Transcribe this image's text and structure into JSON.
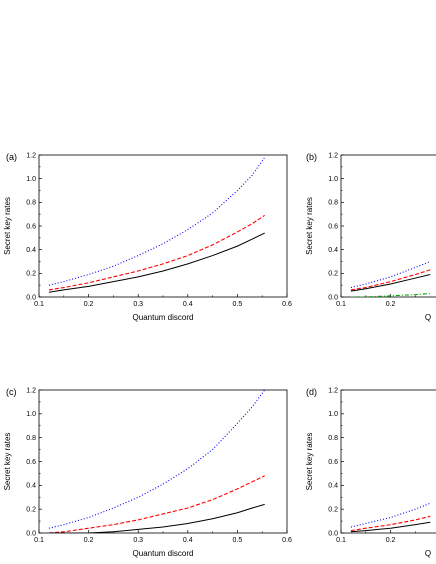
{
  "chart_data": [
    {
      "type": "line",
      "panel_label": "(a)",
      "xlabel": "Quantum discord",
      "ylabel": "Secret key rates",
      "xlim": [
        0.1,
        0.6
      ],
      "ylim": [
        0.0,
        1.2
      ],
      "x_ticks": [
        "0.1",
        "0.2",
        "0.3",
        "0.4",
        "0.5",
        "0.6"
      ],
      "y_ticks": [
        "0.0",
        "0.2",
        "0.4",
        "0.6",
        "0.8",
        "1.0",
        "1.2"
      ],
      "grid": false,
      "series": [
        {
          "style": "dotted",
          "color": "#0000ff",
          "x": [
            0.12,
            0.15,
            0.2,
            0.25,
            0.3,
            0.35,
            0.4,
            0.45,
            0.5,
            0.53,
            0.555
          ],
          "y": [
            0.1,
            0.13,
            0.19,
            0.26,
            0.35,
            0.45,
            0.57,
            0.71,
            0.9,
            1.03,
            1.18
          ]
        },
        {
          "style": "dashed",
          "color": "#ff0000",
          "x": [
            0.12,
            0.15,
            0.2,
            0.25,
            0.3,
            0.35,
            0.4,
            0.45,
            0.5,
            0.53,
            0.555
          ],
          "y": [
            0.06,
            0.08,
            0.12,
            0.17,
            0.22,
            0.28,
            0.35,
            0.44,
            0.55,
            0.62,
            0.69
          ]
        },
        {
          "style": "solid",
          "color": "#000000",
          "x": [
            0.12,
            0.15,
            0.2,
            0.25,
            0.3,
            0.35,
            0.4,
            0.45,
            0.5,
            0.53,
            0.555
          ],
          "y": [
            0.04,
            0.06,
            0.09,
            0.13,
            0.17,
            0.22,
            0.28,
            0.35,
            0.43,
            0.49,
            0.54
          ]
        }
      ]
    },
    {
      "type": "line",
      "panel_label": "(b)",
      "xlabel": "Q",
      "ylabel": "Secret key rates",
      "xlim": [
        0.1,
        0.6
      ],
      "ylim": [
        0.0,
        1.2
      ],
      "x_ticks": [
        "0.1",
        "0.2"
      ],
      "y_ticks": [
        "0.0",
        "0.2",
        "0.4",
        "0.6",
        "0.8",
        "1.0",
        "1.2"
      ],
      "grid": false,
      "series": [
        {
          "style": "dotted",
          "color": "#0000ff",
          "x": [
            0.12,
            0.15,
            0.2,
            0.25,
            0.28
          ],
          "y": [
            0.08,
            0.11,
            0.17,
            0.25,
            0.3
          ]
        },
        {
          "style": "dashed",
          "color": "#ff0000",
          "x": [
            0.12,
            0.15,
            0.2,
            0.25,
            0.28
          ],
          "y": [
            0.06,
            0.08,
            0.13,
            0.19,
            0.23
          ]
        },
        {
          "style": "solid",
          "color": "#000000",
          "x": [
            0.12,
            0.15,
            0.2,
            0.25,
            0.28
          ],
          "y": [
            0.05,
            0.07,
            0.11,
            0.16,
            0.19
          ]
        },
        {
          "style": "dash-dot",
          "color": "#00aa00",
          "x": [
            0.12,
            0.15,
            0.2,
            0.25,
            0.28
          ],
          "y": [
            0.0,
            0.0,
            0.01,
            0.02,
            0.03
          ]
        }
      ]
    },
    {
      "type": "line",
      "panel_label": "(c)",
      "xlabel": "Quantum discord",
      "ylabel": "Secret key rates",
      "xlim": [
        0.1,
        0.6
      ],
      "ylim": [
        0.0,
        1.2
      ],
      "x_ticks": [
        "0.1",
        "0.2",
        "0.3",
        "0.4",
        "0.5",
        "0.6"
      ],
      "y_ticks": [
        "0.0",
        "0.2",
        "0.4",
        "0.6",
        "0.8",
        "1.0",
        "1.2"
      ],
      "grid": false,
      "series": [
        {
          "style": "dotted",
          "color": "#0000ff",
          "x": [
            0.12,
            0.15,
            0.2,
            0.25,
            0.3,
            0.35,
            0.4,
            0.45,
            0.5,
            0.53,
            0.555
          ],
          "y": [
            0.04,
            0.07,
            0.13,
            0.21,
            0.3,
            0.41,
            0.54,
            0.7,
            0.92,
            1.06,
            1.2
          ]
        },
        {
          "style": "dashed",
          "color": "#ff0000",
          "x": [
            0.12,
            0.15,
            0.2,
            0.25,
            0.3,
            0.35,
            0.4,
            0.45,
            0.5,
            0.53,
            0.555
          ],
          "y": [
            0.0,
            0.01,
            0.04,
            0.07,
            0.11,
            0.16,
            0.21,
            0.28,
            0.37,
            0.43,
            0.48
          ]
        },
        {
          "style": "solid",
          "color": "#000000",
          "x": [
            0.12,
            0.15,
            0.2,
            0.25,
            0.3,
            0.35,
            0.4,
            0.45,
            0.5,
            0.53,
            0.555
          ],
          "y": [
            0.0,
            0.0,
            0.0,
            0.01,
            0.03,
            0.05,
            0.08,
            0.12,
            0.17,
            0.21,
            0.24
          ]
        }
      ]
    },
    {
      "type": "line",
      "panel_label": "(d)",
      "xlabel": "Q",
      "ylabel": "Secret key rates",
      "xlim": [
        0.1,
        0.6
      ],
      "ylim": [
        0.0,
        1.2
      ],
      "x_ticks": [
        "0.1",
        "0.2"
      ],
      "y_ticks": [
        "0.0",
        "0.2",
        "0.4",
        "0.6",
        "0.8",
        "1.0",
        "1.2"
      ],
      "grid": false,
      "series": [
        {
          "style": "dotted",
          "color": "#0000ff",
          "x": [
            0.12,
            0.15,
            0.2,
            0.25,
            0.28
          ],
          "y": [
            0.05,
            0.08,
            0.13,
            0.2,
            0.25
          ]
        },
        {
          "style": "dashed",
          "color": "#ff0000",
          "x": [
            0.12,
            0.15,
            0.2,
            0.25,
            0.28
          ],
          "y": [
            0.02,
            0.04,
            0.07,
            0.11,
            0.14
          ]
        },
        {
          "style": "solid",
          "color": "#000000",
          "x": [
            0.12,
            0.15,
            0.2,
            0.25,
            0.28
          ],
          "y": [
            0.01,
            0.02,
            0.04,
            0.07,
            0.09
          ]
        }
      ]
    }
  ]
}
